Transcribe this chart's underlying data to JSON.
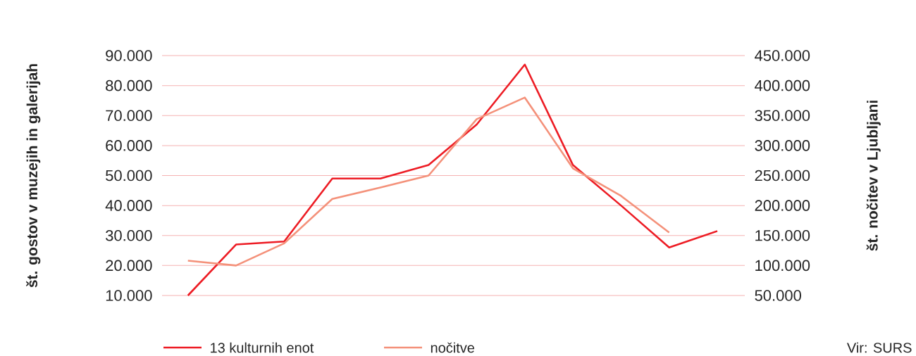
{
  "chart_data": {
    "type": "line",
    "ylabel": "št. gostov v muzejih in galerijah",
    "y2label": "št. nočitev v Ljubljani",
    "categories": [
      null,
      null,
      null,
      null,
      null,
      null,
      null,
      null,
      null,
      null,
      null,
      null
    ],
    "series": [
      {
        "name": "13 kulturnih enot",
        "color": "#ed1c24",
        "values": [
          10000,
          27000,
          28000,
          49000,
          49000,
          53500,
          67000,
          87000,
          53500,
          40000,
          26000,
          31500
        ]
      },
      {
        "name": "nočitve",
        "color": "#f4917a",
        "axis": "y2",
        "values": [
          108000,
          100000,
          137000,
          211000,
          230000,
          250000,
          344000,
          380000,
          262000,
          216000,
          155000,
          null
        ]
      }
    ],
    "ylim": [
      10000,
      90000
    ],
    "yticks": [
      {
        "value": 10000,
        "label": "10.000"
      },
      {
        "value": 20000,
        "label": "20.000"
      },
      {
        "value": 30000,
        "label": "30.000"
      },
      {
        "value": 40000,
        "label": "40.000"
      },
      {
        "value": 50000,
        "label": "50.000"
      },
      {
        "value": 60000,
        "label": "60.000"
      },
      {
        "value": 70000,
        "label": "70.000"
      },
      {
        "value": 80000,
        "label": "80.000"
      },
      {
        "value": 90000,
        "label": "90.000"
      }
    ],
    "y2lim": [
      50000,
      450000
    ],
    "y2ticks": [
      {
        "value": 50000,
        "label": "50.000"
      },
      {
        "value": 100000,
        "label": "100.000"
      },
      {
        "value": 150000,
        "label": "150.000"
      },
      {
        "value": 200000,
        "label": "200.000"
      },
      {
        "value": 250000,
        "label": "250.000"
      },
      {
        "value": 300000,
        "label": "300.000"
      },
      {
        "value": 350000,
        "label": "350.000"
      },
      {
        "value": 400000,
        "label": "400.000"
      },
      {
        "value": 450000,
        "label": "450.000"
      }
    ],
    "grid": "y",
    "legend": "bottom",
    "marker": "none",
    "line_style": "solid",
    "annotations": [
      "Vir: SURS"
    ]
  }
}
